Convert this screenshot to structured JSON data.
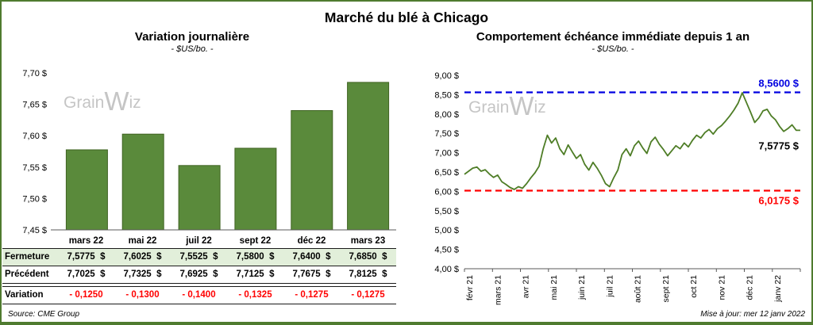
{
  "page": {
    "title": "Marché du blé à Chicago",
    "source": "Source: CME Group",
    "updated": "Mise à jour: mer 12 janv 2022",
    "watermark": {
      "pre": "Grain",
      "w": "W",
      "post": "iz",
      "color": "#bfbfbf"
    }
  },
  "left_panel": {
    "title": "Variation journalière",
    "subtitle": "- $US/bo. -"
  },
  "right_panel": {
    "title": "Comportement échéance immédiate depuis 1 an",
    "subtitle": "- $US/bo. -"
  },
  "chart_data": [
    {
      "type": "bar",
      "title": "Variation journalière",
      "subtitle": "- $US/bo. -",
      "categories": [
        "mars 22",
        "mai 22",
        "juil 22",
        "sept 22",
        "déc 22",
        "mars 23"
      ],
      "values": [
        7.5775,
        7.6025,
        7.5525,
        7.58,
        7.64,
        7.685
      ],
      "ylim": [
        7.45,
        7.7
      ],
      "yticks": [
        7.45,
        7.5,
        7.55,
        7.6,
        7.65,
        7.7
      ],
      "ytick_labels": [
        "7,45 $",
        "7,50 $",
        "7,55 $",
        "7,60 $",
        "7,65 $",
        "7,70 $"
      ],
      "grid": false,
      "bar_color": "#5a8a3b",
      "bar_border": "#3f6322"
    },
    {
      "type": "line",
      "title": "Comportement échéance immédiate depuis 1 an",
      "subtitle": "- $US/bo. -",
      "x_labels": [
        "févr 21",
        "mars 21",
        "avr 21",
        "mai 21",
        "juin 21",
        "juil 21",
        "août 21",
        "sept 21",
        "oct 21",
        "nov 21",
        "déc 21",
        "janv 22"
      ],
      "ylim": [
        4,
        9
      ],
      "yticks": [
        4,
        4.5,
        5,
        5.5,
        6,
        6.5,
        7,
        7.5,
        8,
        8.5,
        9
      ],
      "ytick_labels": [
        "4,00 $",
        "4,50 $",
        "5,00 $",
        "5,50 $",
        "6,00 $",
        "6,50 $",
        "7,00 $",
        "7,50 $",
        "8,00 $",
        "8,50 $",
        "9,00 $"
      ],
      "grid": false,
      "line_color": "#4e7d26",
      "series": [
        {
          "name": "échéance immédiate",
          "values": [
            6.44,
            6.52,
            6.6,
            6.63,
            6.52,
            6.56,
            6.45,
            6.36,
            6.42,
            6.25,
            6.18,
            6.1,
            6.05,
            6.12,
            6.08,
            6.2,
            6.35,
            6.48,
            6.65,
            7.1,
            7.45,
            7.25,
            7.38,
            7.1,
            6.95,
            7.2,
            7.02,
            6.85,
            6.95,
            6.7,
            6.55,
            6.75,
            6.6,
            6.42,
            6.2,
            6.12,
            6.35,
            6.55,
            6.95,
            7.1,
            6.92,
            7.18,
            7.3,
            7.12,
            6.98,
            7.28,
            7.4,
            7.22,
            7.08,
            6.92,
            7.05,
            7.18,
            7.1,
            7.25,
            7.15,
            7.32,
            7.45,
            7.38,
            7.52,
            7.6,
            7.48,
            7.62,
            7.7,
            7.82,
            7.95,
            8.1,
            8.28,
            8.55,
            8.3,
            8.05,
            7.78,
            7.9,
            8.08,
            8.12,
            7.95,
            7.85,
            7.68,
            7.55,
            7.62,
            7.72,
            7.58,
            7.5775
          ]
        }
      ],
      "hlines": [
        {
          "value": 8.56,
          "label": "8,5600 $",
          "color": "#0000e0"
        },
        {
          "value": 6.0175,
          "label": "6,0175 $",
          "color": "#ff0000"
        }
      ],
      "end_annotation": {
        "value": 7.5775,
        "label": "7,5775 $",
        "color": "#000000"
      }
    }
  ],
  "table": {
    "header": [
      "mars 22",
      "mai 22",
      "juil 22",
      "sept 22",
      "déc 22",
      "mars 23"
    ],
    "rows": [
      {
        "label": "Fermeture",
        "values": [
          "7,5775  $",
          "7,6025  $",
          "7,5525  $",
          "7,5800  $",
          "7,6400  $",
          "7,6850  $"
        ]
      },
      {
        "label": "Précédent",
        "values": [
          "7,7025  $",
          "7,7325  $",
          "7,6925  $",
          "7,7125  $",
          "7,7675  $",
          "7,8125  $"
        ]
      },
      {
        "label": "Variation",
        "values": [
          "- 0,1250",
          "- 0,1300",
          "- 0,1400",
          "- 0,1325",
          "- 0,1275",
          "- 0,1275"
        ]
      }
    ]
  }
}
